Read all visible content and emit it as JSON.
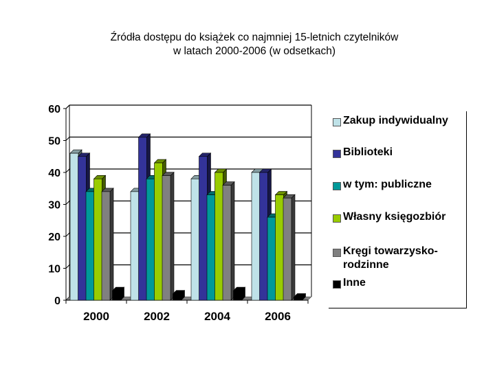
{
  "title_line1": "Źródła dostępu do książek co najmniej 15-letnich czytelników",
  "title_line2": "w latach 2000-2006 (w odsetkach)",
  "legend": [
    {
      "label": "Zakup indywidualny",
      "color": "#bfe2e8"
    },
    {
      "label": "Biblioteki",
      "color": "#333399"
    },
    {
      "label": "w tym: publiczne",
      "color": "#009999"
    },
    {
      "label": "Własny księgozbiór",
      "color": "#99cc00"
    },
    {
      "label": "Kręgi towarzysko-\nrodzinne",
      "color": "#808080"
    },
    {
      "label": "Inne",
      "color": "#000000"
    }
  ],
  "chart_data": {
    "type": "bar",
    "title": "Źródła dostępu do książek co najmniej 15-letnich czytelników w latach 2000-2006 (w odsetkach)",
    "xlabel": "",
    "ylabel": "",
    "ylim": [
      0,
      60
    ],
    "yticks": [
      0,
      10,
      20,
      30,
      40,
      50,
      60
    ],
    "grid": true,
    "legend_position": "right",
    "style": "3d clustered column",
    "categories": [
      "2000",
      "2002",
      "2004",
      "2006"
    ],
    "series": [
      {
        "name": "Zakup indywidualny",
        "color": "#bfe2e8",
        "values": [
          46,
          34,
          38,
          40
        ]
      },
      {
        "name": "Biblioteki",
        "color": "#333399",
        "values": [
          45,
          51,
          45,
          40
        ]
      },
      {
        "name": "w tym: publiczne",
        "color": "#009999",
        "values": [
          34,
          38,
          33,
          26
        ]
      },
      {
        "name": "Własny księgozbiór",
        "color": "#99cc00",
        "values": [
          38,
          43,
          40,
          33
        ]
      },
      {
        "name": "Kręgi towarzysko-rodzinne",
        "color": "#808080",
        "values": [
          34,
          39,
          36,
          32
        ]
      },
      {
        "name": "Inne",
        "color": "#000000",
        "values": [
          3,
          2,
          3,
          1
        ]
      }
    ]
  }
}
